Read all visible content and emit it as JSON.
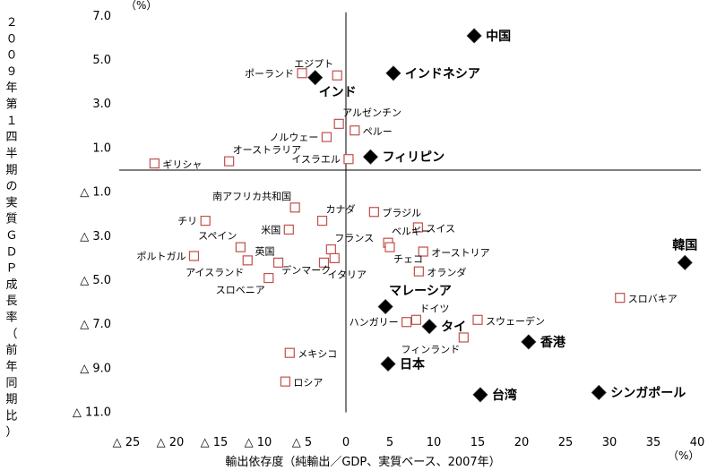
{
  "chart_data": {
    "type": "scatter",
    "title": "",
    "xlabel": "輸出依存度（純輸出／GDP、実質ベース、2007年）",
    "ylabel": "２００９年第１四半期の実質ＧＤＰ成長率（前年同期比）",
    "x_unit": "（%）",
    "y_unit": "（%）",
    "xlim": [
      -25,
      40
    ],
    "ylim": [
      -11,
      7
    ],
    "grid": false,
    "x_ticks": [
      {
        "value": -25,
        "label": "△ 25"
      },
      {
        "value": -20,
        "label": "△ 20"
      },
      {
        "value": -15,
        "label": "△ 15"
      },
      {
        "value": -10,
        "label": "△ 10"
      },
      {
        "value": -5,
        "label": "△ 5"
      },
      {
        "value": 0,
        "label": "0"
      },
      {
        "value": 5,
        "label": "5"
      },
      {
        "value": 10,
        "label": "10"
      },
      {
        "value": 15,
        "label": "15"
      },
      {
        "value": 20,
        "label": "20"
      },
      {
        "value": 25,
        "label": "25"
      },
      {
        "value": 30,
        "label": "30"
      },
      {
        "value": 35,
        "label": "35"
      },
      {
        "value": 40,
        "label": "40"
      }
    ],
    "y_ticks": [
      {
        "value": 7,
        "label": "7.0"
      },
      {
        "value": 5,
        "label": "5.0"
      },
      {
        "value": 3,
        "label": "3.0"
      },
      {
        "value": 1,
        "label": "1.0"
      },
      {
        "value": -1,
        "label": "△ 1.0"
      },
      {
        "value": -3,
        "label": "△ 3.0"
      },
      {
        "value": -5,
        "label": "△ 5.0"
      },
      {
        "value": -7,
        "label": "△ 7.0"
      },
      {
        "value": -9,
        "label": "△ 9.0"
      },
      {
        "value": -11,
        "label": "△ 11.0"
      }
    ],
    "series": [
      {
        "marker": "diamond",
        "color": "#000000",
        "points": [
          {
            "label": "中国",
            "x": 14.6,
            "y": 6.1,
            "pos": "right"
          },
          {
            "label": "インドネシア",
            "x": 5.4,
            "y": 4.4,
            "pos": "right"
          },
          {
            "label": "インド",
            "x": -3.5,
            "y": 4.2,
            "pos": "below-right"
          },
          {
            "label": "フィリピン",
            "x": 2.8,
            "y": 0.6,
            "pos": "right"
          },
          {
            "label": "韓国",
            "x": 38.6,
            "y": -4.2,
            "pos": "above"
          },
          {
            "label": "マレーシア",
            "x": 4.5,
            "y": -6.2,
            "pos": "above-right"
          },
          {
            "label": "タイ",
            "x": 9.5,
            "y": -7.1,
            "pos": "right"
          },
          {
            "label": "香港",
            "x": 20.8,
            "y": -7.8,
            "pos": "right"
          },
          {
            "label": "日本",
            "x": 4.8,
            "y": -8.8,
            "pos": "right"
          },
          {
            "label": "台湾",
            "x": 15.3,
            "y": -10.2,
            "pos": "right"
          },
          {
            "label": "シンガポール",
            "x": 28.8,
            "y": -10.1,
            "pos": "right"
          }
        ]
      },
      {
        "marker": "square-open",
        "color": "#c0504d",
        "points": [
          {
            "label": "ポーランド",
            "x": -5.0,
            "y": 4.4,
            "pos": "left"
          },
          {
            "label": "エジプト",
            "x": -1.0,
            "y": 4.3,
            "pos": "above-left"
          },
          {
            "label": "アルゼンチン",
            "x": -0.8,
            "y": 2.1,
            "pos": "above-right"
          },
          {
            "label": "ノルウェー",
            "x": -2.2,
            "y": 1.5,
            "pos": "left"
          },
          {
            "label": "ペルー",
            "x": 1.0,
            "y": 1.8,
            "pos": "right"
          },
          {
            "label": "オーストラリア",
            "x": -13.3,
            "y": 0.4,
            "pos": "above-right"
          },
          {
            "label": "ギリシャ",
            "x": -21.8,
            "y": 0.3,
            "pos": "right"
          },
          {
            "label": "イスラエル",
            "x": 0.3,
            "y": 0.5,
            "pos": "left"
          },
          {
            "label": "南アフリカ共和国",
            "x": -5.8,
            "y": -1.7,
            "pos": "above-left"
          },
          {
            "label": "チリ",
            "x": -16.0,
            "y": -2.3,
            "pos": "left"
          },
          {
            "label": "米国",
            "x": -6.5,
            "y": -2.7,
            "pos": "left"
          },
          {
            "label": "カナダ",
            "x": -2.7,
            "y": -2.3,
            "pos": "above-right"
          },
          {
            "label": "ブラジル",
            "x": 3.2,
            "y": -1.9,
            "pos": "right"
          },
          {
            "label": "スイス",
            "x": 8.2,
            "y": -2.6,
            "pos": "right"
          },
          {
            "label": "スペイン",
            "x": -12.0,
            "y": -3.5,
            "pos": "above-left"
          },
          {
            "label": "フランス",
            "x": -1.7,
            "y": -3.6,
            "pos": "above-right"
          },
          {
            "label": "ベルギー",
            "x": 4.8,
            "y": -3.3,
            "pos": "above-right"
          },
          {
            "label": "オーストリア",
            "x": 8.8,
            "y": -3.7,
            "pos": "right"
          },
          {
            "label": "ポルトガル",
            "x": -17.3,
            "y": -3.9,
            "pos": "left"
          },
          {
            "label": "英国",
            "x": -7.7,
            "y": -4.2,
            "pos": "above-left"
          },
          {
            "label": "チェコ",
            "x": 5.0,
            "y": -3.5,
            "pos": "below-right"
          },
          {
            "label": "イタリア",
            "x": -2.5,
            "y": -4.2,
            "pos": "below-right"
          },
          {
            "label": "アイスランド",
            "x": -11.2,
            "y": -4.1,
            "pos": "below-left"
          },
          {
            "label": "デンマーク",
            "x": -1.3,
            "y": -4.0,
            "pos": "below-left"
          },
          {
            "label": "オランダ",
            "x": 8.3,
            "y": -4.6,
            "pos": "right"
          },
          {
            "label": "スロベニア",
            "x": -8.8,
            "y": -4.9,
            "pos": "below-left"
          },
          {
            "label": "スロバキア",
            "x": 31.2,
            "y": -5.8,
            "pos": "right"
          },
          {
            "label": "ドイツ",
            "x": 8.0,
            "y": -6.8,
            "pos": "above-right"
          },
          {
            "label": "ハンガリー",
            "x": 6.9,
            "y": -6.9,
            "pos": "left"
          },
          {
            "label": "スウェーデン",
            "x": 15.0,
            "y": -6.8,
            "pos": "right"
          },
          {
            "label": "フィンランド",
            "x": 13.4,
            "y": -7.6,
            "pos": "below-left"
          },
          {
            "label": "メキシコ",
            "x": -6.4,
            "y": -8.3,
            "pos": "right"
          },
          {
            "label": "ロシア",
            "x": -6.9,
            "y": -9.6,
            "pos": "right"
          }
        ]
      }
    ]
  }
}
